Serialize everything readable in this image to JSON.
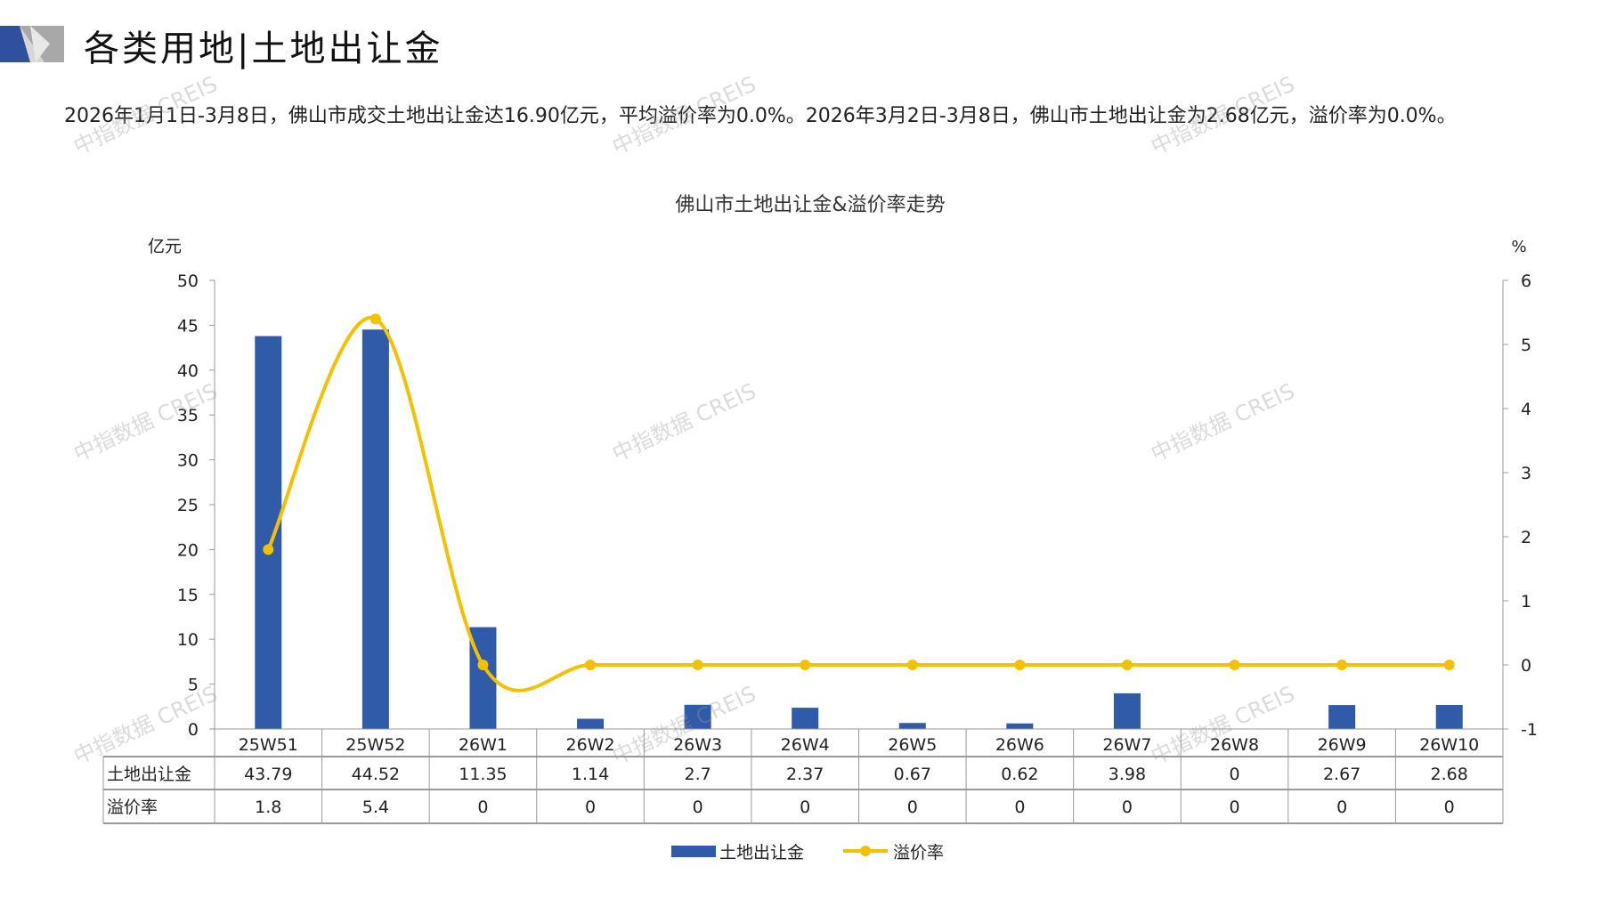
{
  "header": {
    "title": "各类用地|土地出让金"
  },
  "summary": "2026年1月1日-3月8日，佛山市成交土地出让金达16.90亿元，平均溢价率为0.0%。2026年3月2日-3月8日，佛山市土地出让金为2.68亿元，溢价率为0.0%。",
  "watermark": "中指数据 CREIS",
  "colors": {
    "bar": "#2f5ba8",
    "line": "#f5c000",
    "logo_blue": "#2f4f9f",
    "logo_gray": "#b0b0b0"
  },
  "chart_data": {
    "type": "bar+line",
    "title": "佛山市土地出让金&溢价率走势",
    "categories": [
      "25W51",
      "25W52",
      "26W1",
      "26W2",
      "26W3",
      "26W4",
      "26W5",
      "26W6",
      "26W7",
      "26W8",
      "26W9",
      "26W10"
    ],
    "y_left": {
      "label": "亿元",
      "range": [
        0,
        50
      ],
      "ticks": [
        0,
        5,
        10,
        15,
        20,
        25,
        30,
        35,
        40,
        45,
        50
      ]
    },
    "y_right": {
      "label": "%",
      "range": [
        -1,
        6
      ],
      "ticks": [
        -1,
        0,
        1,
        2,
        3,
        4,
        5,
        6
      ]
    },
    "series": [
      {
        "name": "土地出让金",
        "type": "bar",
        "axis": "left",
        "values": [
          43.79,
          44.52,
          11.35,
          1.14,
          2.7,
          2.37,
          0.67,
          0.62,
          3.98,
          0,
          2.67,
          2.68
        ],
        "labels": [
          "43.79",
          "44.52",
          "11.35",
          "1.14",
          "2.7",
          "2.37",
          "0.67",
          "0.62",
          "3.98",
          "0",
          "2.67",
          "2.68"
        ]
      },
      {
        "name": "溢价率",
        "type": "line",
        "axis": "right",
        "smooth": true,
        "values": [
          1.8,
          5.4,
          0,
          0,
          0,
          0,
          0,
          0,
          0,
          0,
          0,
          0
        ],
        "labels": [
          "1.8",
          "5.4",
          "0",
          "0",
          "0",
          "0",
          "0",
          "0",
          "0",
          "0",
          "0",
          "0"
        ]
      }
    ],
    "data_table": true,
    "legend": "bottom",
    "grid": false
  }
}
